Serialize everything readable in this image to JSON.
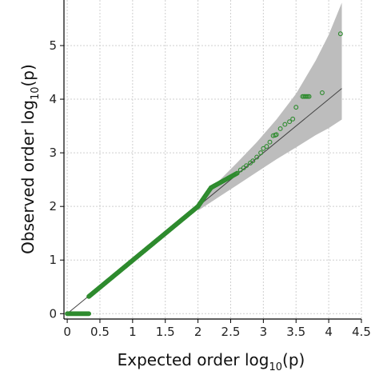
{
  "chart_data": {
    "type": "scatter",
    "title": "",
    "xlabel": {
      "main": "Expected order log",
      "sub": "10",
      "arg": "(p)"
    },
    "ylabel": {
      "main": "Observed order log",
      "sub": "10",
      "arg": "(p)"
    },
    "xlim": [
      -0.05,
      4.5
    ],
    "ylim": [
      -0.1,
      5.85
    ],
    "xticks": [
      0,
      0.5,
      1,
      1.5,
      2,
      2.5,
      3,
      3.5,
      4,
      4.5
    ],
    "xtick_labels": [
      "0",
      "0.5",
      "1",
      "1.5",
      "2",
      "2.5",
      "3",
      "3.5",
      "4",
      "4.5"
    ],
    "yticks": [
      0,
      1,
      2,
      3,
      4,
      5
    ],
    "ytick_labels": [
      "0",
      "1",
      "2",
      "3",
      "4",
      "5"
    ],
    "grid": true,
    "legend": "none",
    "colors": {
      "points": "#2e8b2e",
      "reference_line": "#444444",
      "band": "#bdbdbd",
      "grid": "#cfcfcf"
    },
    "reference_line": {
      "from": [
        0,
        0
      ],
      "to": [
        4.2,
        4.2
      ]
    },
    "confidence_band": {
      "x": [
        2.0,
        2.3,
        2.6,
        2.9,
        3.2,
        3.5,
        3.8,
        4.0,
        4.2
      ],
      "lower": [
        1.92,
        2.16,
        2.4,
        2.64,
        2.88,
        3.1,
        3.33,
        3.46,
        3.62
      ],
      "upper": [
        2.08,
        2.45,
        2.82,
        3.2,
        3.62,
        4.1,
        4.72,
        5.2,
        5.8
      ]
    },
    "series": [
      {
        "segments": [
          {
            "x_from": 0.0,
            "x_to": 0.33,
            "y_from": 0.0,
            "y_to": 0.0,
            "step": 0.012
          },
          {
            "x_from": 0.33,
            "x_to": 2.0,
            "y_from": 0.32,
            "y_to": 2.0,
            "step": 0.008
          },
          {
            "x_from": 2.0,
            "x_to": 2.2,
            "y_from": 2.0,
            "y_to": 2.35,
            "step": 0.008
          },
          {
            "x_from": 2.2,
            "x_to": 2.6,
            "y_from": 2.35,
            "y_to": 2.62,
            "step": 0.012
          }
        ],
        "points": [
          [
            2.65,
            2.68
          ],
          [
            2.7,
            2.72
          ],
          [
            2.74,
            2.76
          ],
          [
            2.8,
            2.81
          ],
          [
            2.84,
            2.85
          ],
          [
            2.9,
            2.92
          ],
          [
            2.96,
            3.0
          ],
          [
            3.0,
            3.08
          ],
          [
            3.05,
            3.12
          ],
          [
            3.1,
            3.2
          ],
          [
            3.15,
            3.32
          ],
          [
            3.18,
            3.33
          ],
          [
            3.2,
            3.34
          ],
          [
            3.26,
            3.45
          ],
          [
            3.33,
            3.53
          ],
          [
            3.4,
            3.58
          ],
          [
            3.45,
            3.63
          ],
          [
            3.5,
            3.85
          ],
          [
            3.6,
            4.05
          ],
          [
            3.62,
            4.05
          ],
          [
            3.64,
            4.05
          ],
          [
            3.66,
            4.05
          ],
          [
            3.68,
            4.05
          ],
          [
            3.7,
            4.05
          ],
          [
            3.9,
            4.12
          ],
          [
            4.18,
            5.22
          ]
        ]
      }
    ]
  }
}
